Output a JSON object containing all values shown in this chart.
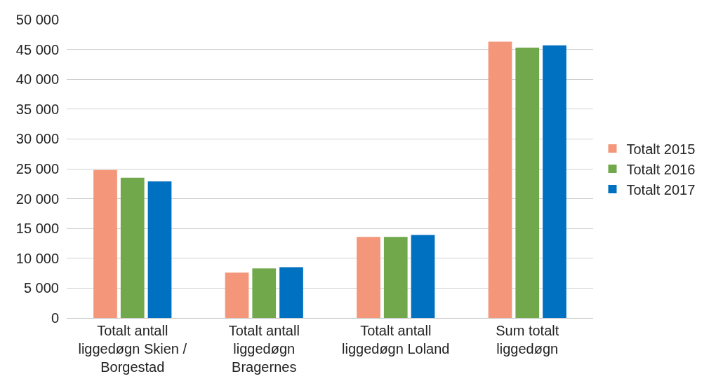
{
  "chart_data": {
    "type": "bar",
    "categories": [
      "Totalt antall liggedøgn Skien / Borgestad",
      "Totalt antall liggedøgn Bragernes",
      "Totalt antall liggedøgn Loland",
      "Sum totalt liggedøgn"
    ],
    "series": [
      {
        "name": "Totalt 2015",
        "color": "#f4967a",
        "values": [
          24800,
          7600,
          13600,
          46300
        ]
      },
      {
        "name": "Totalt 2016",
        "color": "#70a84b",
        "values": [
          23500,
          8300,
          13600,
          45300
        ]
      },
      {
        "name": "Totalt 2017",
        "color": "#0070c0",
        "values": [
          22900,
          8500,
          13900,
          45700
        ]
      }
    ],
    "ylim": [
      0,
      50000
    ],
    "yticks": [
      0,
      {
        "value": 5000,
        "label": "5 000"
      },
      {
        "value": 10000,
        "label": "10 000"
      },
      {
        "value": 15000,
        "label": "15 000"
      },
      {
        "value": 20000,
        "label": "20 000"
      },
      {
        "value": 25000,
        "label": "25 000"
      },
      {
        "value": 30000,
        "label": "30 000"
      },
      {
        "value": 35000,
        "label": "35 000"
      },
      {
        "value": 40000,
        "label": "40 000"
      },
      {
        "value": 45000,
        "label": "45 000"
      },
      {
        "value": 50000,
        "label": "50 000"
      }
    ],
    "grid": "y",
    "legend": "right"
  }
}
